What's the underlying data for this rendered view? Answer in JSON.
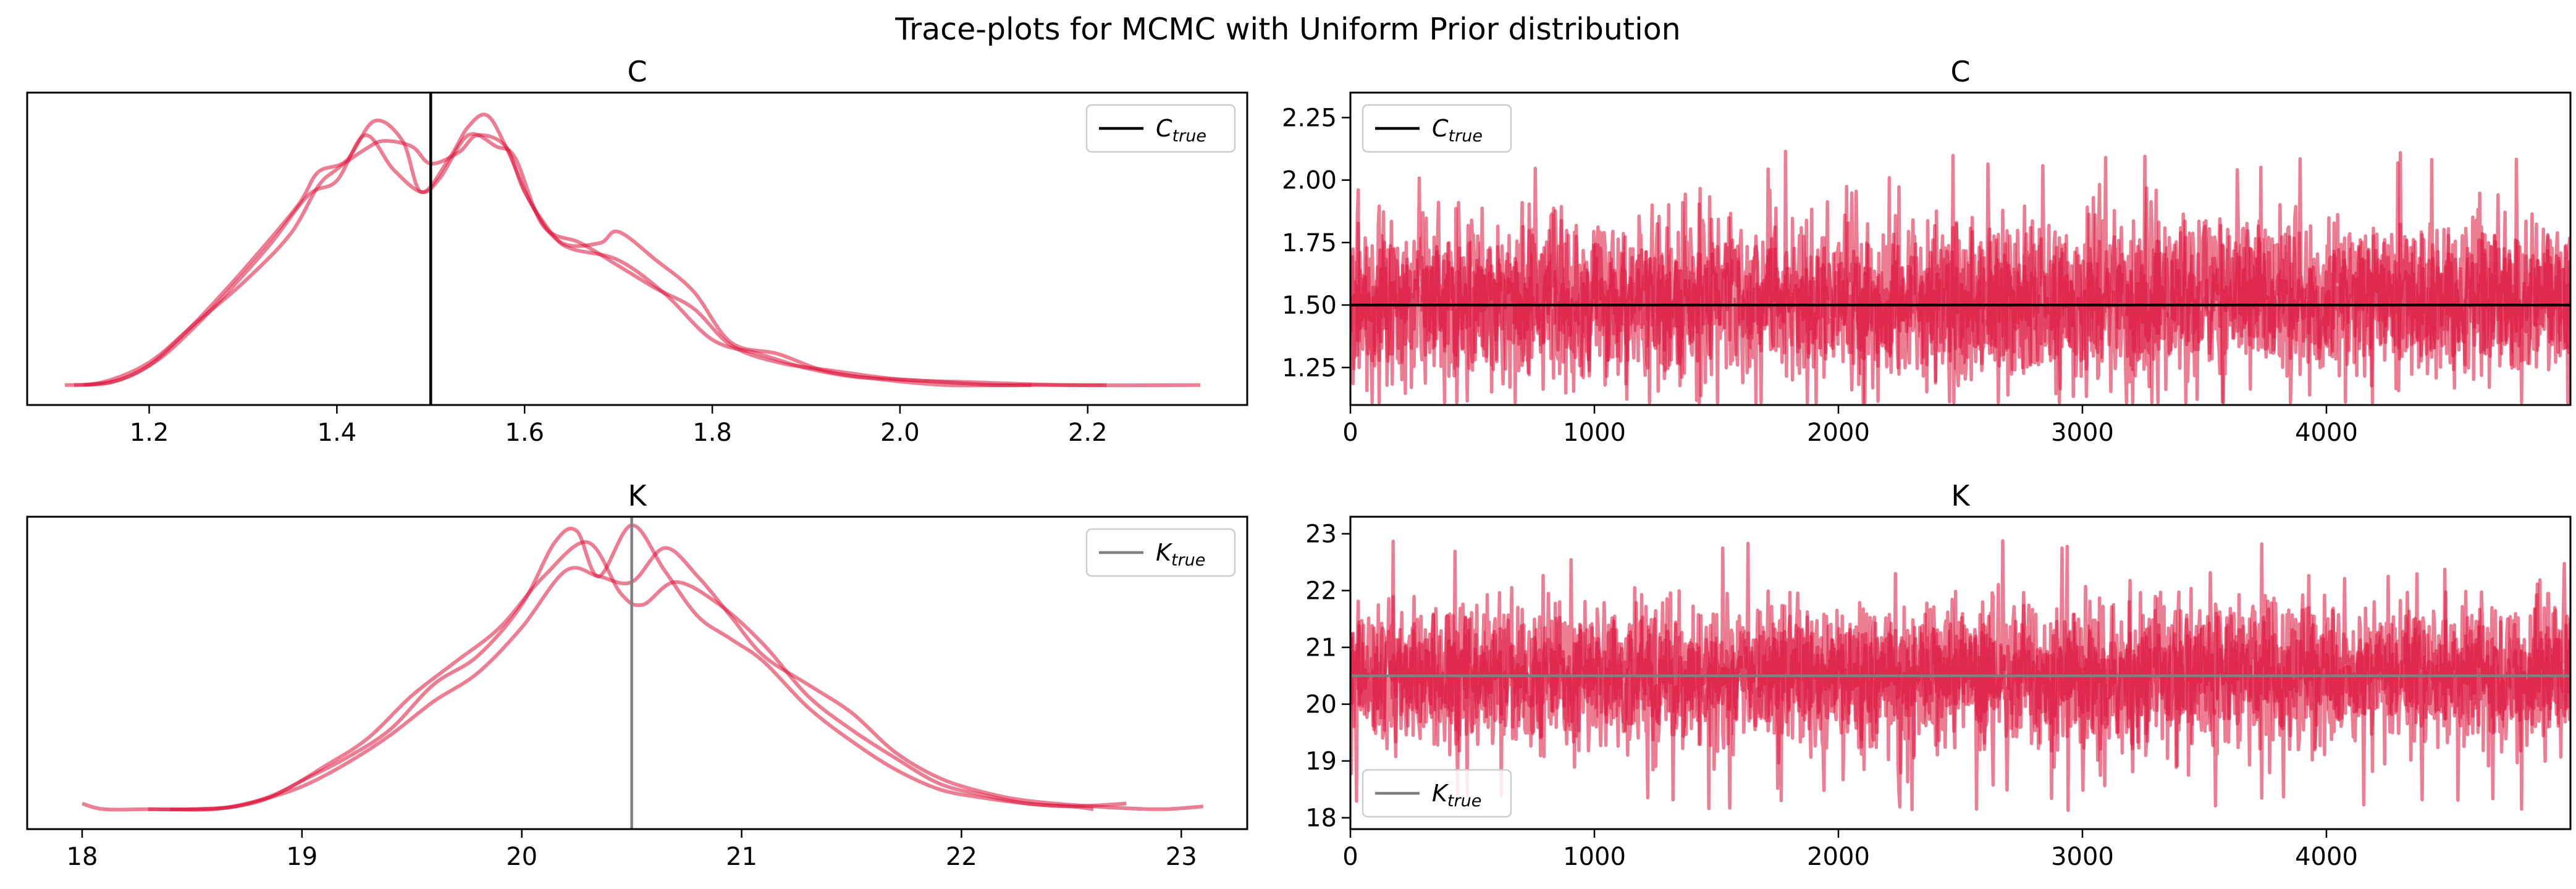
{
  "figure": {
    "suptitle": "Trace-plots for MCMC with Uniform Prior distribution"
  },
  "colors": {
    "chain": "#dc143c",
    "true_C": "#000000",
    "true_K": "#808080"
  },
  "chart_data": [
    {
      "id": "C-density",
      "type": "line",
      "title": "C",
      "subtitle": "",
      "xlabel": "",
      "ylabel": "",
      "xlim": [
        1.07,
        2.37
      ],
      "xticks": [
        1.2,
        1.4,
        1.6,
        1.8,
        2.0,
        2.2
      ],
      "xtick_labels": [
        "1.2",
        "1.4",
        "1.6",
        "1.8",
        "2.0",
        "2.2"
      ],
      "yticks": [],
      "grid": false,
      "legend": {
        "position": "upper right",
        "entries": [
          {
            "label_main": "C",
            "label_sub": "true",
            "color": "#000000"
          }
        ]
      },
      "true_value": 1.5,
      "series": [
        {
          "x": [
            1.11,
            1.15,
            1.2,
            1.25,
            1.3,
            1.35,
            1.38,
            1.4,
            1.43,
            1.45,
            1.48,
            1.5,
            1.53,
            1.55,
            1.58,
            1.6,
            1.63,
            1.65,
            1.7,
            1.75,
            1.8,
            1.85,
            1.9,
            1.95,
            2.0,
            2.05,
            2.1,
            2.14
          ],
          "y": [
            0.02,
            0.03,
            0.1,
            0.24,
            0.38,
            0.55,
            0.72,
            0.78,
            0.85,
            0.88,
            0.86,
            0.8,
            0.84,
            0.9,
            0.86,
            0.7,
            0.55,
            0.5,
            0.46,
            0.34,
            0.18,
            0.13,
            0.08,
            0.05,
            0.04,
            0.03,
            0.02,
            0.02
          ]
        },
        {
          "x": [
            1.12,
            1.16,
            1.2,
            1.24,
            1.28,
            1.32,
            1.36,
            1.38,
            1.41,
            1.44,
            1.47,
            1.49,
            1.52,
            1.54,
            1.56,
            1.58,
            1.61,
            1.64,
            1.68,
            1.7,
            1.74,
            1.78,
            1.82,
            1.87,
            1.92,
            1.98,
            2.05,
            2.12,
            2.22
          ],
          "y": [
            0.02,
            0.03,
            0.09,
            0.21,
            0.35,
            0.5,
            0.66,
            0.77,
            0.81,
            0.95,
            0.88,
            0.7,
            0.82,
            0.93,
            0.97,
            0.86,
            0.64,
            0.52,
            0.52,
            0.56,
            0.46,
            0.35,
            0.17,
            0.13,
            0.07,
            0.04,
            0.02,
            0.02,
            0.02
          ]
        },
        {
          "x": [
            1.13,
            1.17,
            1.21,
            1.25,
            1.29,
            1.33,
            1.37,
            1.4,
            1.43,
            1.46,
            1.49,
            1.51,
            1.54,
            1.57,
            1.59,
            1.62,
            1.66,
            1.7,
            1.74,
            1.78,
            1.82,
            1.87,
            1.93,
            2.0,
            2.08,
            2.18,
            2.32
          ],
          "y": [
            0.02,
            0.04,
            0.11,
            0.23,
            0.37,
            0.52,
            0.69,
            0.74,
            0.9,
            0.78,
            0.7,
            0.75,
            0.9,
            0.86,
            0.82,
            0.58,
            0.52,
            0.44,
            0.36,
            0.29,
            0.16,
            0.1,
            0.07,
            0.04,
            0.03,
            0.02,
            0.02
          ]
        }
      ]
    },
    {
      "id": "C-trace",
      "type": "line",
      "title": "C",
      "subtitle": "",
      "xlabel": "",
      "ylabel": "",
      "xlim": [
        0,
        5000
      ],
      "ylim": [
        1.1,
        2.35
      ],
      "xticks": [
        0,
        1000,
        2000,
        3000,
        4000
      ],
      "xtick_labels": [
        "0",
        "1000",
        "2000",
        "3000",
        "4000"
      ],
      "yticks": [
        1.25,
        1.5,
        1.75,
        2.0,
        2.25
      ],
      "ytick_labels": [
        "1.25",
        "1.50",
        "1.75",
        "2.00",
        "2.25"
      ],
      "grid": false,
      "legend": {
        "position": "upper left",
        "entries": [
          {
            "label_main": "C",
            "label_sub": "true",
            "color": "#000000"
          }
        ]
      },
      "true_value": 1.5,
      "trace": {
        "chains": 3,
        "draws": 5000,
        "mean": 1.52,
        "sd": 0.15,
        "min": 1.11,
        "max": 2.33
      }
    },
    {
      "id": "K-density",
      "type": "line",
      "title": "K",
      "subtitle": "",
      "xlabel": "",
      "ylabel": "",
      "xlim": [
        17.75,
        23.3
      ],
      "xticks": [
        18,
        19,
        20,
        21,
        22,
        23
      ],
      "xtick_labels": [
        "18",
        "19",
        "20",
        "21",
        "22",
        "23"
      ],
      "yticks": [],
      "grid": false,
      "legend": {
        "position": "upper right",
        "entries": [
          {
            "label_main": "K",
            "label_sub": "true",
            "color": "#808080"
          }
        ]
      },
      "true_value": 20.5,
      "series": [
        {
          "x": [
            18.0,
            18.1,
            18.3,
            18.5,
            18.7,
            18.9,
            19.1,
            19.3,
            19.5,
            19.7,
            19.9,
            20.1,
            20.3,
            20.45,
            20.55,
            20.7,
            20.9,
            21.1,
            21.3,
            21.5,
            21.7,
            21.9,
            22.1,
            22.3,
            22.5,
            22.6
          ],
          "y": [
            0.04,
            0.02,
            0.02,
            0.02,
            0.03,
            0.08,
            0.17,
            0.27,
            0.42,
            0.54,
            0.66,
            0.84,
            0.96,
            0.78,
            0.74,
            0.82,
            0.74,
            0.6,
            0.42,
            0.3,
            0.2,
            0.11,
            0.07,
            0.04,
            0.03,
            0.02
          ]
        },
        {
          "x": [
            18.3,
            18.5,
            18.7,
            18.85,
            19.0,
            19.2,
            19.4,
            19.6,
            19.8,
            20.0,
            20.15,
            20.25,
            20.35,
            20.5,
            20.65,
            20.8,
            20.95,
            21.1,
            21.3,
            21.5,
            21.7,
            21.9,
            22.1,
            22.3,
            22.5,
            22.75
          ],
          "y": [
            0.02,
            0.02,
            0.03,
            0.06,
            0.12,
            0.2,
            0.3,
            0.46,
            0.56,
            0.74,
            0.96,
            1.0,
            0.84,
            1.02,
            0.86,
            0.7,
            0.62,
            0.54,
            0.38,
            0.26,
            0.16,
            0.09,
            0.06,
            0.04,
            0.03,
            0.04
          ]
        },
        {
          "x": [
            18.4,
            18.6,
            18.8,
            19.0,
            19.2,
            19.4,
            19.6,
            19.8,
            20.0,
            20.2,
            20.35,
            20.5,
            20.65,
            20.8,
            20.95,
            21.1,
            21.3,
            21.5,
            21.7,
            21.9,
            22.1,
            22.3,
            22.6,
            22.9,
            23.1
          ],
          "y": [
            0.02,
            0.02,
            0.05,
            0.1,
            0.18,
            0.28,
            0.4,
            0.5,
            0.66,
            0.86,
            0.84,
            0.82,
            0.94,
            0.84,
            0.7,
            0.56,
            0.46,
            0.36,
            0.22,
            0.13,
            0.08,
            0.05,
            0.03,
            0.02,
            0.03
          ]
        }
      ]
    },
    {
      "id": "K-trace",
      "type": "line",
      "title": "K",
      "subtitle": "",
      "xlabel": "",
      "ylabel": "",
      "xlim": [
        0,
        5000
      ],
      "ylim": [
        17.8,
        23.3
      ],
      "xticks": [
        0,
        1000,
        2000,
        3000,
        4000
      ],
      "xtick_labels": [
        "0",
        "1000",
        "2000",
        "3000",
        "4000"
      ],
      "yticks": [
        18,
        19,
        20,
        21,
        22,
        23
      ],
      "ytick_labels": [
        "18",
        "19",
        "20",
        "21",
        "22",
        "23"
      ],
      "grid": false,
      "legend": {
        "position": "lower left",
        "entries": [
          {
            "label_main": "K",
            "label_sub": "true",
            "color": "#808080"
          }
        ]
      },
      "true_value": 20.5,
      "trace": {
        "chains": 3,
        "draws": 5000,
        "mean": 20.5,
        "sd": 0.6,
        "min": 18.0,
        "max": 23.15
      }
    }
  ]
}
